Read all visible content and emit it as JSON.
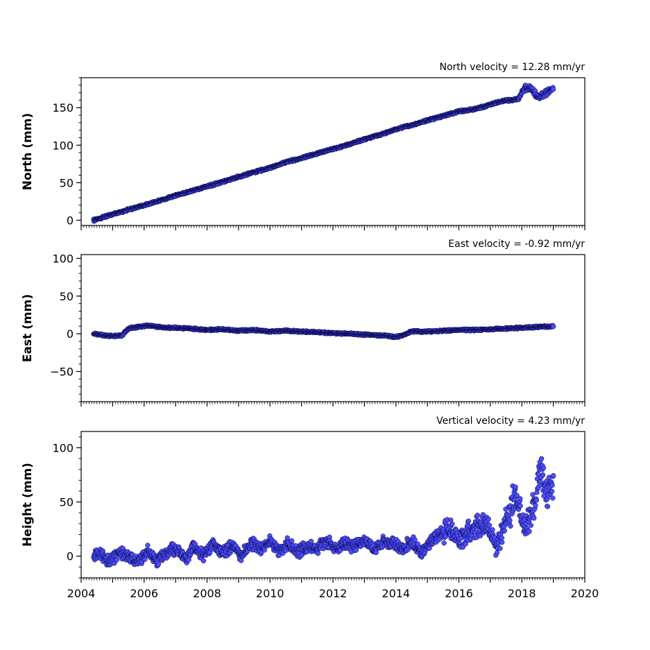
{
  "chart_data": [
    {
      "type": "scatter",
      "title": "North velocity = 12.28 mm/yr",
      "xlabel": "",
      "ylabel": "North (mm)",
      "xlim": [
        2004,
        2020
      ],
      "ylim": [
        -7,
        190
      ],
      "yticks": [
        "0",
        "50",
        "100",
        "150"
      ],
      "grid": false,
      "marker_color": "#4d4dff",
      "edge_color": "#000033",
      "series": [
        {
          "x": [
            2004.4,
            2004.7,
            2005.0,
            2005.5,
            2006.0,
            2006.5,
            2007.0,
            2007.5,
            2008.0,
            2008.5,
            2009.0,
            2009.5,
            2010.0,
            2010.5,
            2011.0,
            2011.5,
            2012.0,
            2012.5,
            2013.0,
            2013.5,
            2014.0,
            2014.5,
            2015.0,
            2015.5,
            2016.0,
            2016.5,
            2017.0,
            2017.3,
            2017.6,
            2017.9,
            2018.1,
            2018.3,
            2018.5,
            2018.7,
            2018.9,
            2019.0
          ],
          "y": [
            0,
            4,
            8,
            14,
            20,
            26,
            33,
            39,
            45,
            51,
            58,
            64,
            70,
            77,
            83,
            89,
            95,
            101,
            108,
            114,
            121,
            127,
            133,
            139,
            145,
            148,
            154,
            158,
            160,
            162,
            178,
            175,
            165,
            168,
            172,
            178
          ]
        }
      ]
    },
    {
      "type": "scatter",
      "title": "East velocity = -0.92 mm/yr",
      "xlabel": "",
      "ylabel": "East (mm)",
      "xlim": [
        2004,
        2020
      ],
      "ylim": [
        -90,
        105
      ],
      "yticks": [
        "−50",
        "0",
        "50",
        "100"
      ],
      "grid": false,
      "marker_color": "#4d4dff",
      "edge_color": "#000033",
      "series": [
        {
          "x": [
            2004.4,
            2004.7,
            2005.0,
            2005.3,
            2005.5,
            2005.8,
            2006.2,
            2006.6,
            2007.0,
            2007.5,
            2008.0,
            2008.5,
            2009.0,
            2009.5,
            2010.0,
            2010.5,
            2011.0,
            2011.5,
            2012.0,
            2012.5,
            2013.0,
            2013.5,
            2014.0,
            2014.2,
            2014.5,
            2015.0,
            2015.5,
            2016.0,
            2016.5,
            2017.0,
            2017.5,
            2018.0,
            2018.5,
            2019.0
          ],
          "y": [
            0,
            -2,
            -3,
            -2,
            7,
            9,
            11,
            8,
            8,
            7,
            5,
            6,
            4,
            5,
            3,
            4,
            3,
            2,
            1,
            0,
            -1,
            -2,
            -4,
            -2,
            3,
            3,
            4,
            5,
            5,
            6,
            7,
            8,
            9,
            10
          ]
        }
      ]
    },
    {
      "type": "scatter",
      "title": "Vertical velocity = 4.23 mm/yr",
      "xlabel": "",
      "ylabel": "Height (mm)",
      "xlim": [
        2004,
        2020
      ],
      "xticks": [
        "2004",
        "2006",
        "2008",
        "2010",
        "2012",
        "2014",
        "2016",
        "2018",
        "2020"
      ],
      "ylim": [
        -20,
        115
      ],
      "yticks": [
        "0",
        "50",
        "100"
      ],
      "grid": false,
      "marker_color": "#4d4dff",
      "edge_color": "#000033",
      "series": [
        {
          "x": [
            2004.4,
            2004.6,
            2004.9,
            2005.2,
            2005.5,
            2005.8,
            2006.1,
            2006.4,
            2006.7,
            2007.0,
            2007.3,
            2007.6,
            2007.9,
            2008.2,
            2008.5,
            2008.8,
            2009.1,
            2009.4,
            2009.7,
            2010.0,
            2010.3,
            2010.6,
            2010.9,
            2011.2,
            2011.5,
            2011.8,
            2012.1,
            2012.4,
            2012.7,
            2013.0,
            2013.3,
            2013.6,
            2013.9,
            2014.2,
            2014.5,
            2014.8,
            2015.1,
            2015.4,
            2015.7,
            2016.0,
            2016.3,
            2016.6,
            2016.9,
            2017.2,
            2017.5,
            2017.8,
            2018.1,
            2018.4,
            2018.6,
            2018.8,
            2019.0
          ],
          "y": [
            0,
            3,
            -6,
            4,
            0,
            -6,
            5,
            -4,
            2,
            8,
            -4,
            9,
            1,
            12,
            2,
            10,
            0,
            13,
            6,
            14,
            4,
            12,
            3,
            9,
            7,
            13,
            8,
            12,
            9,
            14,
            6,
            13,
            12,
            7,
            14,
            3,
            12,
            20,
            25,
            15,
            22,
            28,
            30,
            5,
            35,
            55,
            22,
            48,
            80,
            60,
            68
          ]
        }
      ]
    }
  ]
}
